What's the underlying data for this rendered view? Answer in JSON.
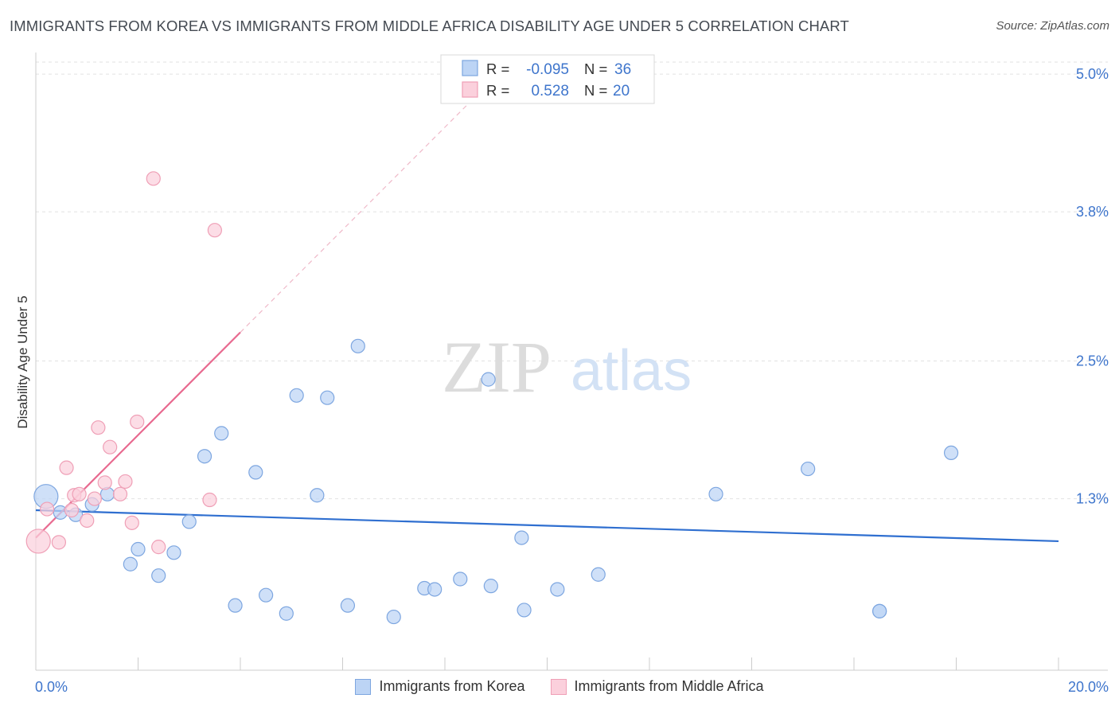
{
  "header": {
    "title": "IMMIGRANTS FROM KOREA VS IMMIGRANTS FROM MIDDLE AFRICA DISABILITY AGE UNDER 5 CORRELATION CHART",
    "source": "Source: ZipAtlas.com"
  },
  "watermark": {
    "zip": "ZIP",
    "atlas": "atlas"
  },
  "colors": {
    "blue_fill": "#bcd4f5",
    "blue_stroke": "#7da6e0",
    "blue_line": "#2f6fd0",
    "pink_fill": "#fbd0dc",
    "pink_stroke": "#ef9fb6",
    "pink_line": "#e8698f",
    "value_text": "#3e75cc"
  },
  "stats": {
    "korea": {
      "r_label": "R =",
      "r_value": "-0.095",
      "n_label": "N =",
      "n_value": "36"
    },
    "africa": {
      "r_label": "R =",
      "r_value": "0.528",
      "n_label": "N =",
      "n_value": "20"
    }
  },
  "legend": {
    "korea": "Immigrants from Korea",
    "africa": "Immigrants from Middle Africa"
  },
  "chart_data": {
    "type": "scatter",
    "title": "IMMIGRANTS FROM KOREA VS IMMIGRANTS FROM MIDDLE AFRICA DISABILITY AGE UNDER 5 CORRELATION CHART",
    "xlabel": "",
    "ylabel": "Disability Age Under 5",
    "xlim": [
      0,
      20
    ],
    "ylim": [
      0,
      5.1
    ],
    "x_tick_labels": [
      "0.0%",
      "20.0%"
    ],
    "y_ticks": [
      1.3,
      2.5,
      3.8,
      5.0
    ],
    "y_tick_labels": [
      "1.3%",
      "2.5%",
      "3.8%",
      "5.0%"
    ],
    "series": [
      {
        "name": "Immigrants from Korea",
        "color": "blue",
        "points": [
          {
            "x": 0.2,
            "y": 1.32,
            "big": true
          },
          {
            "x": 0.48,
            "y": 1.18
          },
          {
            "x": 0.78,
            "y": 1.16
          },
          {
            "x": 1.1,
            "y": 1.25
          },
          {
            "x": 1.4,
            "y": 1.34
          },
          {
            "x": 1.85,
            "y": 0.73
          },
          {
            "x": 2.0,
            "y": 0.86
          },
          {
            "x": 2.4,
            "y": 0.63
          },
          {
            "x": 2.7,
            "y": 0.83
          },
          {
            "x": 3.0,
            "y": 1.1
          },
          {
            "x": 3.3,
            "y": 1.67
          },
          {
            "x": 3.63,
            "y": 1.87
          },
          {
            "x": 3.9,
            "y": 0.37
          },
          {
            "x": 4.3,
            "y": 1.53
          },
          {
            "x": 4.5,
            "y": 0.46
          },
          {
            "x": 4.9,
            "y": 0.3
          },
          {
            "x": 5.1,
            "y": 2.2
          },
          {
            "x": 5.5,
            "y": 1.33
          },
          {
            "x": 5.7,
            "y": 2.18
          },
          {
            "x": 6.1,
            "y": 0.37
          },
          {
            "x": 6.3,
            "y": 2.63
          },
          {
            "x": 7.0,
            "y": 0.27
          },
          {
            "x": 7.6,
            "y": 0.52
          },
          {
            "x": 7.8,
            "y": 0.51
          },
          {
            "x": 8.3,
            "y": 0.6
          },
          {
            "x": 8.9,
            "y": 0.54
          },
          {
            "x": 8.85,
            "y": 2.34
          },
          {
            "x": 9.5,
            "y": 0.96
          },
          {
            "x": 9.55,
            "y": 0.33
          },
          {
            "x": 10.2,
            "y": 0.51
          },
          {
            "x": 11.0,
            "y": 0.64
          },
          {
            "x": 13.3,
            "y": 1.34
          },
          {
            "x": 15.1,
            "y": 1.56
          },
          {
            "x": 16.5,
            "y": 0.32
          },
          {
            "x": 16.5,
            "y": 0.32
          },
          {
            "x": 17.9,
            "y": 1.7
          }
        ],
        "trend": {
          "x": [
            0,
            20
          ],
          "y": [
            1.2,
            0.93
          ],
          "style": "solid"
        }
      },
      {
        "name": "Immigrants from Middle Africa",
        "color": "pink",
        "points": [
          {
            "x": 0.05,
            "y": 0.93,
            "big": true
          },
          {
            "x": 0.22,
            "y": 1.21
          },
          {
            "x": 0.45,
            "y": 0.92
          },
          {
            "x": 0.6,
            "y": 1.57
          },
          {
            "x": 0.7,
            "y": 1.2
          },
          {
            "x": 0.75,
            "y": 1.33
          },
          {
            "x": 0.85,
            "y": 1.34
          },
          {
            "x": 1.0,
            "y": 1.11
          },
          {
            "x": 1.15,
            "y": 1.3
          },
          {
            "x": 1.22,
            "y": 1.92
          },
          {
            "x": 1.35,
            "y": 1.44
          },
          {
            "x": 1.45,
            "y": 1.75
          },
          {
            "x": 1.65,
            "y": 1.34
          },
          {
            "x": 1.75,
            "y": 1.45
          },
          {
            "x": 1.88,
            "y": 1.09
          },
          {
            "x": 1.98,
            "y": 1.97
          },
          {
            "x": 2.3,
            "y": 4.09
          },
          {
            "x": 2.4,
            "y": 0.88
          },
          {
            "x": 3.4,
            "y": 1.29
          },
          {
            "x": 3.5,
            "y": 3.64
          }
        ],
        "trend_solid": {
          "x": [
            0,
            4.0
          ],
          "y": [
            0.96,
            2.75
          ]
        },
        "trend_dashed": {
          "x": [
            4.0,
            8.7
          ],
          "y": [
            2.75,
            4.85
          ]
        }
      }
    ]
  }
}
